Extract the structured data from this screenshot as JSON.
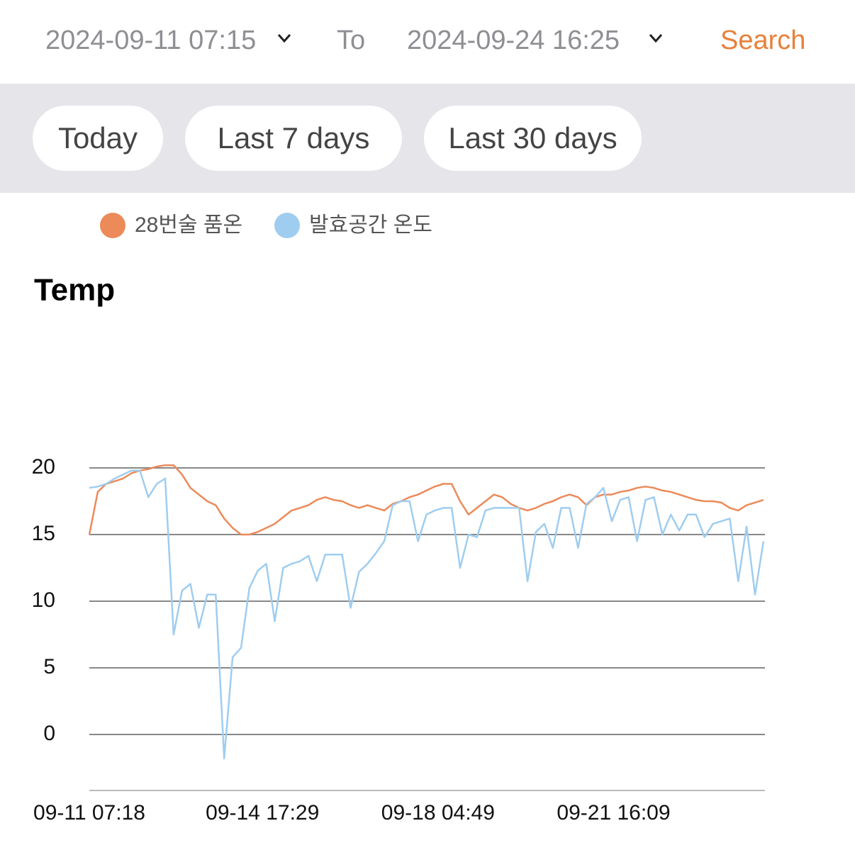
{
  "header": {
    "start": "2024-09-11 07:15",
    "to": "To",
    "end": "2024-09-24 16:25",
    "search": "Search"
  },
  "buttons": [
    "Today",
    "Last 7 days",
    "Last 30 days"
  ],
  "chart_data": {
    "type": "line",
    "title": "Temp",
    "legend": "top-left",
    "grid": true,
    "x": [
      "09-11 07:18",
      "09-11 11:18",
      "09-11 15:18",
      "09-11 19:18",
      "09-11 23:18",
      "09-12 03:18",
      "09-12 07:18",
      "09-12 11:18",
      "09-12 15:18",
      "09-12 19:18",
      "09-12 23:18",
      "09-13 03:18",
      "09-13 07:18",
      "09-13 11:18",
      "09-13 15:18",
      "09-13 19:18",
      "09-13 23:18",
      "09-14 03:18",
      "09-14 07:18",
      "09-14 11:18",
      "09-14 15:18",
      "09-14 19:18",
      "09-14 23:18",
      "09-15 03:18",
      "09-15 07:18",
      "09-15 11:18",
      "09-15 15:18",
      "09-15 19:18",
      "09-15 23:18",
      "09-16 03:18",
      "09-16 07:18",
      "09-16 11:18",
      "09-16 15:18",
      "09-16 19:18",
      "09-16 23:18",
      "09-17 03:18",
      "09-17 07:18",
      "09-17 11:18",
      "09-17 15:18",
      "09-17 19:18",
      "09-17 23:18",
      "09-18 03:18",
      "09-18 07:18",
      "09-18 11:18",
      "09-18 15:18",
      "09-18 19:18",
      "09-18 23:18",
      "09-19 03:18",
      "09-19 07:18",
      "09-19 11:18",
      "09-19 15:18",
      "09-19 19:18",
      "09-19 23:18",
      "09-20 03:18",
      "09-20 07:18",
      "09-20 11:18",
      "09-20 15:18",
      "09-20 19:18",
      "09-20 23:18",
      "09-21 03:18",
      "09-21 07:18",
      "09-21 11:18",
      "09-21 15:18",
      "09-21 19:18",
      "09-21 23:18",
      "09-22 03:18",
      "09-22 07:18",
      "09-22 11:18",
      "09-22 15:18",
      "09-22 19:18",
      "09-22 23:18",
      "09-23 03:18",
      "09-23 07:18",
      "09-23 11:18",
      "09-23 15:18",
      "09-23 19:18",
      "09-23 23:18",
      "09-24 03:18",
      "09-24 07:18",
      "09-24 11:18",
      "09-24 15:18"
    ],
    "series": [
      {
        "name": "28번술 품온",
        "color": "#ec8a5a",
        "values": [
          15.0,
          18.2,
          18.8,
          19.0,
          19.2,
          19.6,
          19.8,
          19.9,
          20.1,
          20.2,
          20.2,
          19.5,
          18.5,
          18.0,
          17.5,
          17.2,
          16.2,
          15.5,
          15.0,
          15.0,
          15.2,
          15.5,
          15.8,
          16.3,
          16.8,
          17.0,
          17.2,
          17.6,
          17.8,
          17.6,
          17.5,
          17.2,
          17.0,
          17.2,
          17.0,
          16.8,
          17.3,
          17.5,
          17.8,
          18.0,
          18.3,
          18.6,
          18.8,
          18.8,
          17.5,
          16.5,
          17.0,
          17.5,
          18.0,
          17.8,
          17.3,
          17.0,
          16.8,
          17.0,
          17.3,
          17.5,
          17.8,
          18.0,
          17.8,
          17.2,
          17.8,
          18.0,
          18.0,
          18.2,
          18.3,
          18.5,
          18.6,
          18.5,
          18.3,
          18.2,
          18.0,
          17.8,
          17.6,
          17.5,
          17.5,
          17.4,
          17.0,
          16.8,
          17.2,
          17.4,
          17.6
        ]
      },
      {
        "name": "발효공간 온도",
        "color": "#9fcdf0",
        "values": [
          18.5,
          18.6,
          18.8,
          19.2,
          19.5,
          19.8,
          19.8,
          17.8,
          18.8,
          19.2,
          7.5,
          10.8,
          11.3,
          8.0,
          10.5,
          10.5,
          -1.8,
          5.8,
          6.5,
          11.0,
          12.3,
          12.8,
          8.5,
          12.5,
          12.8,
          13.0,
          13.4,
          11.5,
          13.5,
          13.5,
          13.5,
          9.5,
          12.2,
          12.8,
          13.6,
          14.5,
          17.2,
          17.5,
          17.5,
          14.5,
          16.5,
          16.8,
          17.0,
          17.0,
          12.5,
          15.0,
          14.8,
          16.8,
          17.0,
          17.0,
          17.0,
          17.0,
          11.5,
          15.2,
          15.8,
          14.0,
          17.0,
          17.0,
          14.0,
          17.3,
          17.8,
          18.5,
          16.0,
          17.6,
          17.8,
          14.5,
          17.6,
          17.8,
          15.0,
          16.5,
          15.3,
          16.5,
          16.5,
          14.8,
          15.8,
          16.0,
          16.2,
          11.5,
          15.6,
          10.5,
          14.5
        ]
      }
    ],
    "xlim": [
      "09-11 07:18",
      "09-24 16:00"
    ],
    "xticks": [
      "09-11 07:18",
      "09-14 17:29",
      "09-18 04:49",
      "09-21 16:09"
    ],
    "ylim": [
      -4.2,
      22.2
    ],
    "yticks": [
      0,
      5,
      10,
      15,
      20
    ]
  }
}
